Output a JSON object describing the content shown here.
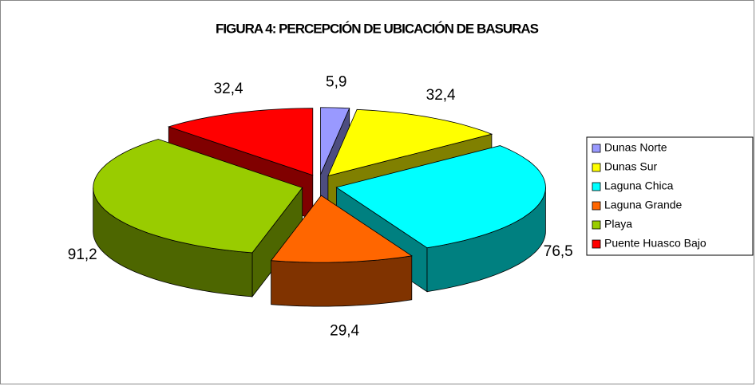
{
  "chart_data": {
    "type": "pie3d",
    "title": "FIGURA 4: PERCEPCIÓN DE UBICACIÓN DE BASURAS",
    "categories": [
      "Dunas Norte",
      "Dunas Sur",
      "Laguna Chica",
      "Laguna Grande",
      "Playa",
      "Puente Huasco Bajo"
    ],
    "values": [
      5.9,
      32.4,
      76.5,
      29.4,
      91.2,
      32.4
    ],
    "value_labels": [
      "5,9",
      "32,4",
      "76,5",
      "29,4",
      "91,2",
      "32,4"
    ],
    "colors": [
      "#9999ff",
      "#ffff00",
      "#00ffff",
      "#ff6600",
      "#99cc00",
      "#ff0000"
    ],
    "legend": "right"
  }
}
